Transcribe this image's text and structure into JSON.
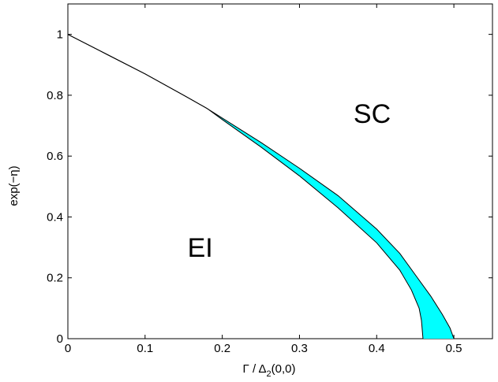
{
  "chart_data": {
    "type": "area",
    "title": "",
    "xlabel_main": "Γ / Δ",
    "xlabel_sub": "2",
    "xlabel_tail": "(0,0)",
    "ylabel": "exp(−η)",
    "xlim": [
      0,
      0.55
    ],
    "ylim": [
      0,
      1.1
    ],
    "grid": false,
    "xticks": [
      0,
      0.1,
      0.2,
      0.3,
      0.4,
      0.5
    ],
    "xtick_labels": [
      "0",
      "0.1",
      "0.2",
      "0.3",
      "0.4",
      "0.5"
    ],
    "yticks": [
      0,
      0.2,
      0.4,
      0.6,
      0.8,
      1
    ],
    "ytick_labels": [
      "0",
      "0.2",
      "0.4",
      "0.6",
      "0.8",
      "1"
    ],
    "fill_color": "#00ffff",
    "line_color": "#000000",
    "series": [
      {
        "x": [
          0,
          0.05,
          0.1,
          0.15,
          0.18,
          0.2,
          0.25,
          0.3,
          0.35,
          0.4,
          0.43,
          0.45,
          0.47,
          0.485,
          0.495,
          0.5
        ],
        "y": [
          1.0,
          0.935,
          0.87,
          0.8,
          0.757,
          0.725,
          0.645,
          0.56,
          0.47,
          0.36,
          0.28,
          0.21,
          0.14,
          0.08,
          0.035,
          0.0
        ]
      },
      {
        "x": [
          0,
          0.05,
          0.1,
          0.15,
          0.18,
          0.2,
          0.25,
          0.3,
          0.35,
          0.4,
          0.43,
          0.445,
          0.455,
          0.458,
          0.459,
          0.46
        ],
        "y": [
          1.0,
          0.935,
          0.87,
          0.8,
          0.757,
          0.72,
          0.63,
          0.535,
          0.43,
          0.315,
          0.225,
          0.16,
          0.1,
          0.06,
          0.03,
          0.0
        ]
      }
    ],
    "annotations": [
      {
        "text": "SC",
        "x": 0.37,
        "y": 0.74
      },
      {
        "text": "EI",
        "x": 0.155,
        "y": 0.3
      }
    ]
  }
}
